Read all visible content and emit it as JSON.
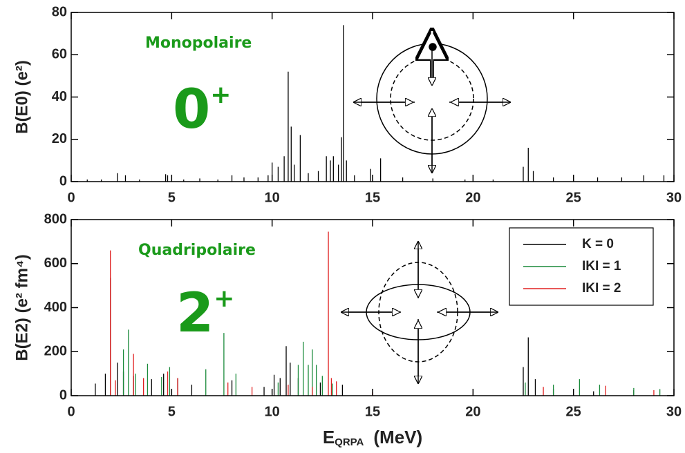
{
  "chart_data": [
    {
      "type": "spike",
      "ylabel": "B(E0) (e²)",
      "xlim": [
        0,
        30
      ],
      "ylim": [
        0,
        80
      ],
      "xticks": [
        0,
        5,
        10,
        15,
        20,
        25,
        30
      ],
      "yticks": [
        0,
        20,
        40,
        60,
        80
      ],
      "color": "#000000",
      "annotations": {
        "mode": "Monopolaire",
        "state": "0",
        "parity": "+"
      },
      "x": [
        0.8,
        1.5,
        2.3,
        2.7,
        3.4,
        4.7,
        4.8,
        5.6,
        6.4,
        7.3,
        8.0,
        8.6,
        9.3,
        9.8,
        10.0,
        10.3,
        10.6,
        10.8,
        10.95,
        11.1,
        11.4,
        11.8,
        12.3,
        12.7,
        12.9,
        13.05,
        13.3,
        13.45,
        13.55,
        13.7,
        14.1,
        14.9,
        15.4,
        16.5,
        18.0,
        19.6,
        21.0,
        22.5,
        22.75,
        23.0,
        24.0,
        25.0,
        26.2,
        27.4,
        28.5,
        29.5
      ],
      "values": [
        1,
        1,
        4,
        3,
        1,
        3.5,
        3,
        1,
        1.5,
        1,
        3,
        2,
        2,
        3,
        9,
        7,
        12,
        52,
        26,
        8,
        22,
        4,
        5,
        12,
        10,
        12,
        8,
        21,
        74,
        10,
        3,
        6,
        11,
        2,
        1.5,
        1,
        1,
        7,
        16,
        5,
        2,
        3,
        2,
        2,
        3,
        3
      ]
    },
    {
      "type": "spike",
      "ylabel": "B(E2) (e² fm⁴)",
      "xlim": [
        0,
        30
      ],
      "ylim": [
        0,
        800
      ],
      "xticks": [
        0,
        5,
        10,
        15,
        20,
        25,
        30
      ],
      "yticks": [
        0,
        200,
        400,
        600,
        800
      ],
      "xlabel": {
        "text": "E",
        "subscript": "QRPA",
        "unit": "(MeV)"
      },
      "annotations": {
        "mode": "Quadripolaire",
        "state": "2",
        "parity": "+"
      },
      "legend": "upper right",
      "series": [
        {
          "name": "K = 0",
          "color": "#000000",
          "x": [
            1.2,
            1.7,
            1.95,
            2.3,
            2.6,
            3.1,
            4.0,
            4.6,
            5.3,
            6.0,
            8.0,
            9.6,
            10.1,
            10.4,
            10.7,
            10.9,
            11.3,
            12.4,
            13.5,
            22.5,
            22.75,
            23.1,
            24.0,
            26.0,
            28.0
          ],
          "values": [
            55,
            100,
            535,
            150,
            110,
            90,
            75,
            100,
            80,
            50,
            70,
            40,
            95,
            80,
            225,
            150,
            80,
            60,
            50,
            130,
            265,
            75,
            30,
            20,
            25
          ]
        },
        {
          "name": "IKI = 1",
          "color": "#1a8a3a",
          "x": [
            2.6,
            2.85,
            3.2,
            3.8,
            4.5,
            4.9,
            6.7,
            7.6,
            8.2,
            10.3,
            11.3,
            11.55,
            11.8,
            12.0,
            12.2,
            12.5,
            13.0,
            22.6,
            24.0,
            25.3,
            26.3,
            28.0,
            29.3
          ],
          "values": [
            210,
            300,
            100,
            145,
            85,
            130,
            120,
            285,
            100,
            60,
            140,
            245,
            140,
            210,
            140,
            90,
            55,
            60,
            50,
            75,
            50,
            35,
            30
          ]
        },
        {
          "name": "IKI = 2",
          "color": "#e02020",
          "x": [
            1.95,
            2.2,
            3.1,
            3.6,
            4.8,
            5.3,
            7.8,
            9.0,
            10.8,
            12.0,
            12.8,
            12.95,
            13.2,
            15.0,
            20.0,
            23.5,
            26.6,
            29.0
          ],
          "values": [
            660,
            70,
            190,
            80,
            110,
            80,
            60,
            40,
            50,
            40,
            745,
            80,
            65,
            15,
            10,
            40,
            45,
            25
          ]
        }
      ]
    }
  ]
}
